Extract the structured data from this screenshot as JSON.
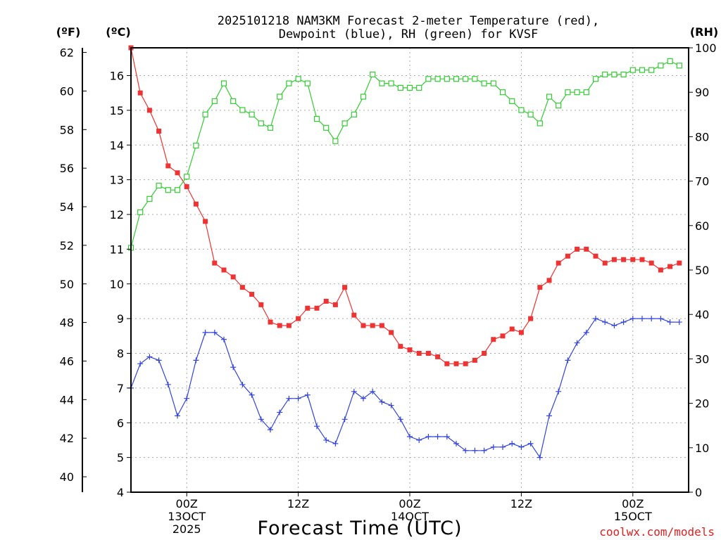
{
  "chart_data": {
    "type": "line",
    "title_line1": "2025101218 NAM3KM Forecast 2-meter Temperature (red),",
    "title_line2": "Dewpoint (blue), RH (green) for KVSF",
    "xlabel": "Forecast Time (UTC)",
    "credit": "coolwx.com/models",
    "units": {
      "fahrenheit": "(ºF)",
      "celsius": "(ºC)",
      "rh": "(RH)"
    },
    "forecast_hours": {
      "start": 0,
      "end": 60,
      "step": 1
    },
    "x_ticks": [
      {
        "hour": 6,
        "line1": "00Z",
        "line2": "13OCT",
        "line3": "2025"
      },
      {
        "hour": 18,
        "line1": "12Z",
        "line2": "",
        "line3": ""
      },
      {
        "hour": 30,
        "line1": "00Z",
        "line2": "14OCT",
        "line3": ""
      },
      {
        "hour": 42,
        "line1": "12Z",
        "line2": "",
        "line3": ""
      },
      {
        "hour": 54,
        "line1": "00Z",
        "line2": "15OCT",
        "line3": ""
      }
    ],
    "celsius_axis": {
      "ylim": [
        4,
        16.8
      ],
      "ticks": [
        "4",
        "5",
        "6",
        "7",
        "8",
        "9",
        "10",
        "11",
        "12",
        "13",
        "14",
        "15",
        "16"
      ]
    },
    "fahrenheit_axis": {
      "ticks": [
        "40",
        "42",
        "44",
        "46",
        "48",
        "50",
        "52",
        "54",
        "56",
        "58",
        "60",
        "62"
      ]
    },
    "rh_axis": {
      "ylim": [
        0,
        100
      ],
      "ticks": [
        "0",
        "10",
        "20",
        "30",
        "40",
        "50",
        "60",
        "70",
        "80",
        "90",
        "100"
      ]
    },
    "series": [
      {
        "name": "Temperature",
        "units": "C",
        "color": "#ee3333",
        "marker": "filled-square",
        "values": [
          16.8,
          15.5,
          15.0,
          14.4,
          13.4,
          13.2,
          12.8,
          12.3,
          11.8,
          10.6,
          10.4,
          10.2,
          9.9,
          9.7,
          9.4,
          8.9,
          8.8,
          8.8,
          9.0,
          9.3,
          9.3,
          9.5,
          9.4,
          9.9,
          9.1,
          8.8,
          8.8,
          8.8,
          8.6,
          8.2,
          8.1,
          8.0,
          8.0,
          7.9,
          7.7,
          7.7,
          7.7,
          7.8,
          8.0,
          8.4,
          8.5,
          8.7,
          8.6,
          9.0,
          9.9,
          10.1,
          10.6,
          10.8,
          11.0,
          11.0,
          10.8,
          10.6,
          10.7,
          10.7,
          10.7,
          10.7,
          10.6,
          10.4,
          10.5,
          10.6
        ]
      },
      {
        "name": "Dewpoint",
        "units": "C",
        "color": "#3344dd",
        "marker": "plus",
        "values": [
          7.0,
          7.7,
          7.9,
          7.8,
          7.1,
          6.2,
          6.7,
          7.8,
          8.6,
          8.6,
          8.4,
          7.6,
          7.1,
          6.8,
          6.1,
          5.8,
          6.3,
          6.7,
          6.7,
          6.8,
          5.9,
          5.5,
          5.4,
          6.1,
          6.9,
          6.7,
          6.9,
          6.6,
          6.5,
          6.1,
          5.6,
          5.5,
          5.6,
          5.6,
          5.6,
          5.4,
          5.2,
          5.2,
          5.2,
          5.3,
          5.3,
          5.4,
          5.3,
          5.4,
          5.0,
          6.2,
          6.9,
          7.8,
          8.3,
          8.6,
          9.0,
          8.9,
          8.8,
          8.9,
          9.0,
          9.0,
          9.0,
          9.0,
          8.9,
          8.9
        ]
      },
      {
        "name": "RH",
        "units": "%",
        "color": "#33cc33",
        "marker": "open-square",
        "values": [
          55,
          63,
          66,
          69,
          68,
          68,
          71,
          78,
          85,
          88,
          92,
          88,
          86,
          85,
          83,
          82,
          89,
          92,
          93,
          92,
          84,
          82,
          79,
          83,
          85,
          89,
          94,
          92,
          92,
          91,
          91,
          91,
          93,
          93,
          93,
          93,
          93,
          93,
          92,
          92,
          90,
          88,
          86,
          85,
          83,
          89,
          87,
          90,
          90,
          90,
          93,
          94,
          94,
          94,
          95,
          95,
          95,
          96,
          97,
          96
        ]
      }
    ]
  }
}
